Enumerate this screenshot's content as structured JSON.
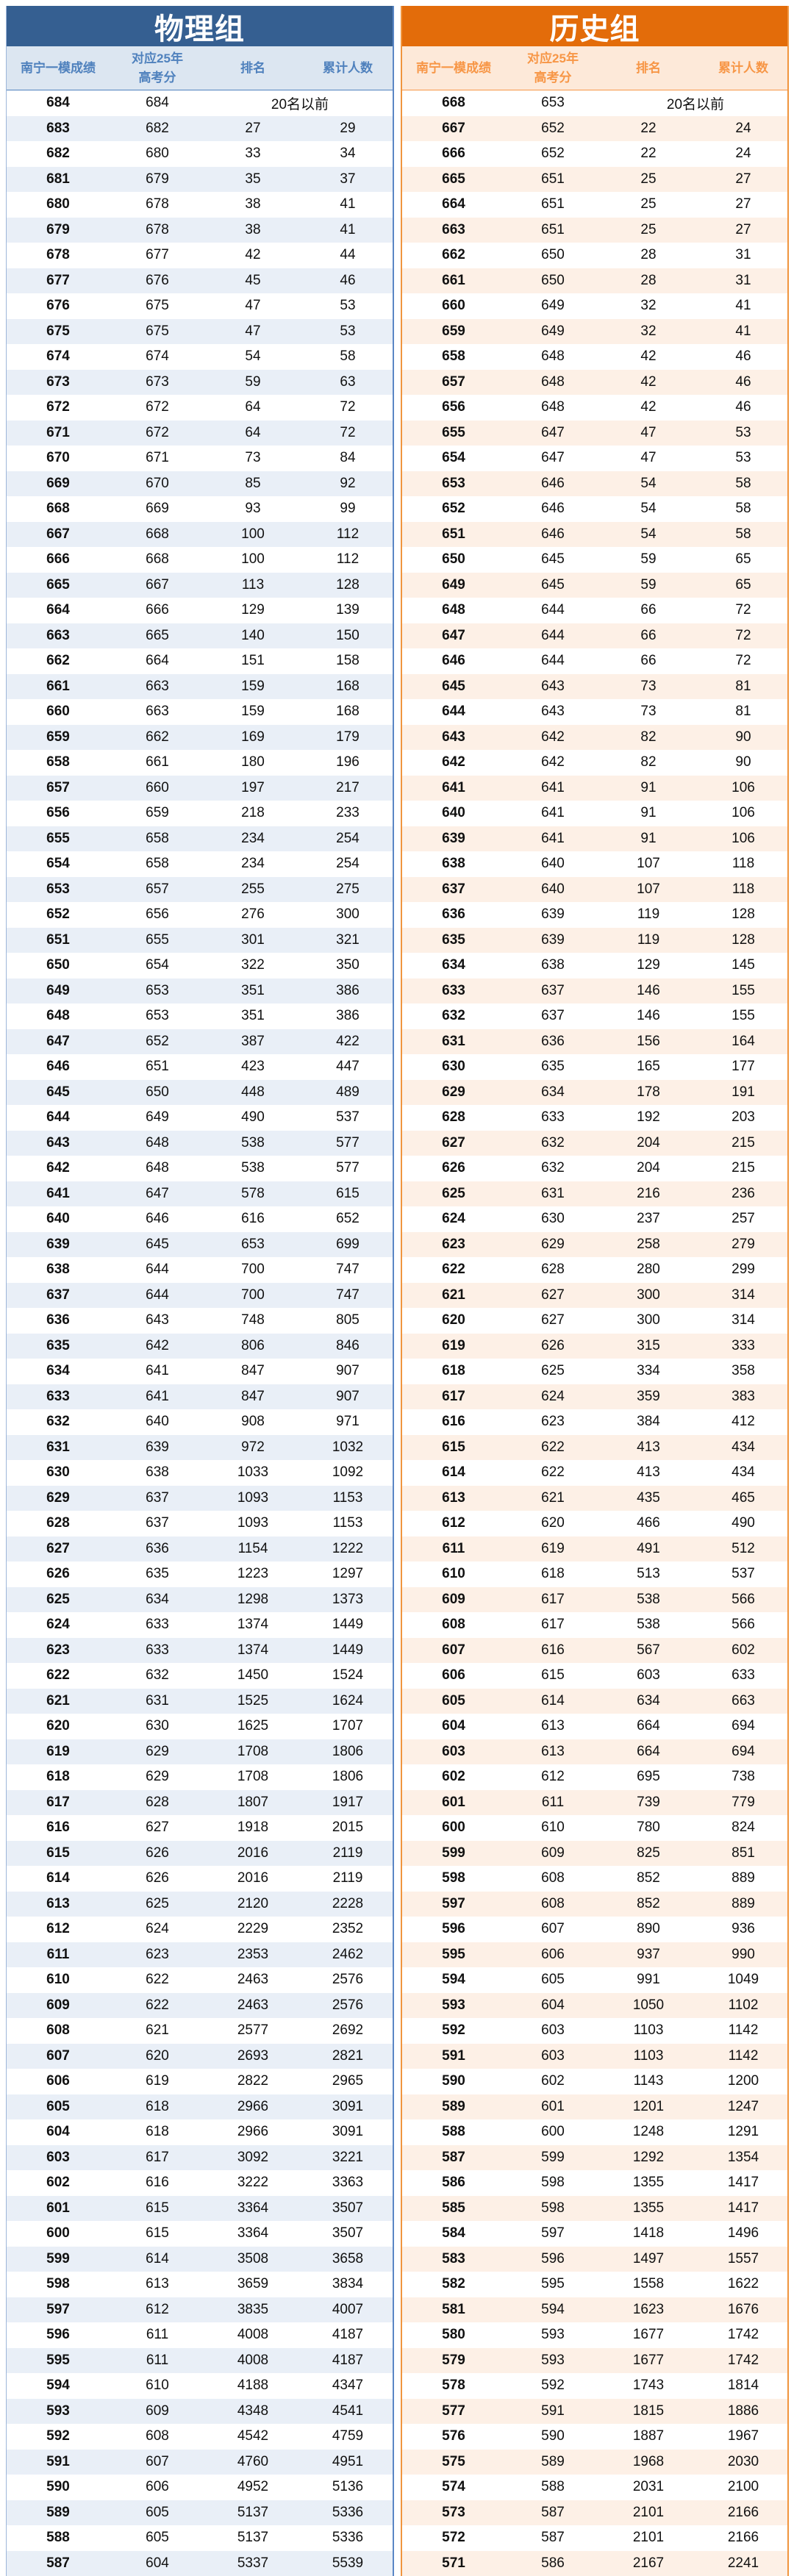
{
  "colors": {
    "physics_accent": "#355F91",
    "history_accent": "#E36C0A"
  },
  "headers": [
    "南宁一模成绩",
    "对应25年\n高考分",
    "排名",
    "累计人数"
  ],
  "physics": {
    "title": "物理组",
    "rows": [
      [
        684,
        684,
        "20名以前"
      ],
      [
        683,
        682,
        27,
        29
      ],
      [
        682,
        680,
        33,
        34
      ],
      [
        681,
        679,
        35,
        37
      ],
      [
        680,
        678,
        38,
        41
      ],
      [
        679,
        678,
        38,
        41
      ],
      [
        678,
        677,
        42,
        44
      ],
      [
        677,
        676,
        45,
        46
      ],
      [
        676,
        675,
        47,
        53
      ],
      [
        675,
        675,
        47,
        53
      ],
      [
        674,
        674,
        54,
        58
      ],
      [
        673,
        673,
        59,
        63
      ],
      [
        672,
        672,
        64,
        72
      ],
      [
        671,
        672,
        64,
        72
      ],
      [
        670,
        671,
        73,
        84
      ],
      [
        669,
        670,
        85,
        92
      ],
      [
        668,
        669,
        93,
        99
      ],
      [
        667,
        668,
        100,
        112
      ],
      [
        666,
        668,
        100,
        112
      ],
      [
        665,
        667,
        113,
        128
      ],
      [
        664,
        666,
        129,
        139
      ],
      [
        663,
        665,
        140,
        150
      ],
      [
        662,
        664,
        151,
        158
      ],
      [
        661,
        663,
        159,
        168
      ],
      [
        660,
        663,
        159,
        168
      ],
      [
        659,
        662,
        169,
        179
      ],
      [
        658,
        661,
        180,
        196
      ],
      [
        657,
        660,
        197,
        217
      ],
      [
        656,
        659,
        218,
        233
      ],
      [
        655,
        658,
        234,
        254
      ],
      [
        654,
        658,
        234,
        254
      ],
      [
        653,
        657,
        255,
        275
      ],
      [
        652,
        656,
        276,
        300
      ],
      [
        651,
        655,
        301,
        321
      ],
      [
        650,
        654,
        322,
        350
      ],
      [
        649,
        653,
        351,
        386
      ],
      [
        648,
        653,
        351,
        386
      ],
      [
        647,
        652,
        387,
        422
      ],
      [
        646,
        651,
        423,
        447
      ],
      [
        645,
        650,
        448,
        489
      ],
      [
        644,
        649,
        490,
        537
      ],
      [
        643,
        648,
        538,
        577
      ],
      [
        642,
        648,
        538,
        577
      ],
      [
        641,
        647,
        578,
        615
      ],
      [
        640,
        646,
        616,
        652
      ],
      [
        639,
        645,
        653,
        699
      ],
      [
        638,
        644,
        700,
        747
      ],
      [
        637,
        644,
        700,
        747
      ],
      [
        636,
        643,
        748,
        805
      ],
      [
        635,
        642,
        806,
        846
      ],
      [
        634,
        641,
        847,
        907
      ],
      [
        633,
        641,
        847,
        907
      ],
      [
        632,
        640,
        908,
        971
      ],
      [
        631,
        639,
        972,
        1032
      ],
      [
        630,
        638,
        1033,
        1092
      ],
      [
        629,
        637,
        1093,
        1153
      ],
      [
        628,
        637,
        1093,
        1153
      ],
      [
        627,
        636,
        1154,
        1222
      ],
      [
        626,
        635,
        1223,
        1297
      ],
      [
        625,
        634,
        1298,
        1373
      ],
      [
        624,
        633,
        1374,
        1449
      ],
      [
        623,
        633,
        1374,
        1449
      ],
      [
        622,
        632,
        1450,
        1524
      ],
      [
        621,
        631,
        1525,
        1624
      ],
      [
        620,
        630,
        1625,
        1707
      ],
      [
        619,
        629,
        1708,
        1806
      ],
      [
        618,
        629,
        1708,
        1806
      ],
      [
        617,
        628,
        1807,
        1917
      ],
      [
        616,
        627,
        1918,
        2015
      ],
      [
        615,
        626,
        2016,
        2119
      ],
      [
        614,
        626,
        2016,
        2119
      ],
      [
        613,
        625,
        2120,
        2228
      ],
      [
        612,
        624,
        2229,
        2352
      ],
      [
        611,
        623,
        2353,
        2462
      ],
      [
        610,
        622,
        2463,
        2576
      ],
      [
        609,
        622,
        2463,
        2576
      ],
      [
        608,
        621,
        2577,
        2692
      ],
      [
        607,
        620,
        2693,
        2821
      ],
      [
        606,
        619,
        2822,
        2965
      ],
      [
        605,
        618,
        2966,
        3091
      ],
      [
        604,
        618,
        2966,
        3091
      ],
      [
        603,
        617,
        3092,
        3221
      ],
      [
        602,
        616,
        3222,
        3363
      ],
      [
        601,
        615,
        3364,
        3507
      ],
      [
        600,
        615,
        3364,
        3507
      ],
      [
        599,
        614,
        3508,
        3658
      ],
      [
        598,
        613,
        3659,
        3834
      ],
      [
        597,
        612,
        3835,
        4007
      ],
      [
        596,
        611,
        4008,
        4187
      ],
      [
        595,
        611,
        4008,
        4187
      ],
      [
        594,
        610,
        4188,
        4347
      ],
      [
        593,
        609,
        4348,
        4541
      ],
      [
        592,
        608,
        4542,
        4759
      ],
      [
        591,
        607,
        4760,
        4951
      ],
      [
        590,
        606,
        4952,
        5136
      ],
      [
        589,
        605,
        5137,
        5336
      ],
      [
        588,
        605,
        5137,
        5336
      ],
      [
        587,
        604,
        5337,
        5539
      ]
    ]
  },
  "history": {
    "title": "历史组",
    "rows": [
      [
        668,
        653,
        "20名以前"
      ],
      [
        667,
        652,
        22,
        24
      ],
      [
        666,
        652,
        22,
        24
      ],
      [
        665,
        651,
        25,
        27
      ],
      [
        664,
        651,
        25,
        27
      ],
      [
        663,
        651,
        25,
        27
      ],
      [
        662,
        650,
        28,
        31
      ],
      [
        661,
        650,
        28,
        31
      ],
      [
        660,
        649,
        32,
        41
      ],
      [
        659,
        649,
        32,
        41
      ],
      [
        658,
        648,
        42,
        46
      ],
      [
        657,
        648,
        42,
        46
      ],
      [
        656,
        648,
        42,
        46
      ],
      [
        655,
        647,
        47,
        53
      ],
      [
        654,
        647,
        47,
        53
      ],
      [
        653,
        646,
        54,
        58
      ],
      [
        652,
        646,
        54,
        58
      ],
      [
        651,
        646,
        54,
        58
      ],
      [
        650,
        645,
        59,
        65
      ],
      [
        649,
        645,
        59,
        65
      ],
      [
        648,
        644,
        66,
        72
      ],
      [
        647,
        644,
        66,
        72
      ],
      [
        646,
        644,
        66,
        72
      ],
      [
        645,
        643,
        73,
        81
      ],
      [
        644,
        643,
        73,
        81
      ],
      [
        643,
        642,
        82,
        90
      ],
      [
        642,
        642,
        82,
        90
      ],
      [
        641,
        641,
        91,
        106
      ],
      [
        640,
        641,
        91,
        106
      ],
      [
        639,
        641,
        91,
        106
      ],
      [
        638,
        640,
        107,
        118
      ],
      [
        637,
        640,
        107,
        118
      ],
      [
        636,
        639,
        119,
        128
      ],
      [
        635,
        639,
        119,
        128
      ],
      [
        634,
        638,
        129,
        145
      ],
      [
        633,
        637,
        146,
        155
      ],
      [
        632,
        637,
        146,
        155
      ],
      [
        631,
        636,
        156,
        164
      ],
      [
        630,
        635,
        165,
        177
      ],
      [
        629,
        634,
        178,
        191
      ],
      [
        628,
        633,
        192,
        203
      ],
      [
        627,
        632,
        204,
        215
      ],
      [
        626,
        632,
        204,
        215
      ],
      [
        625,
        631,
        216,
        236
      ],
      [
        624,
        630,
        237,
        257
      ],
      [
        623,
        629,
        258,
        279
      ],
      [
        622,
        628,
        280,
        299
      ],
      [
        621,
        627,
        300,
        314
      ],
      [
        620,
        627,
        300,
        314
      ],
      [
        619,
        626,
        315,
        333
      ],
      [
        618,
        625,
        334,
        358
      ],
      [
        617,
        624,
        359,
        383
      ],
      [
        616,
        623,
        384,
        412
      ],
      [
        615,
        622,
        413,
        434
      ],
      [
        614,
        622,
        413,
        434
      ],
      [
        613,
        621,
        435,
        465
      ],
      [
        612,
        620,
        466,
        490
      ],
      [
        611,
        619,
        491,
        512
      ],
      [
        610,
        618,
        513,
        537
      ],
      [
        609,
        617,
        538,
        566
      ],
      [
        608,
        617,
        538,
        566
      ],
      [
        607,
        616,
        567,
        602
      ],
      [
        606,
        615,
        603,
        633
      ],
      [
        605,
        614,
        634,
        663
      ],
      [
        604,
        613,
        664,
        694
      ],
      [
        603,
        613,
        664,
        694
      ],
      [
        602,
        612,
        695,
        738
      ],
      [
        601,
        611,
        739,
        779
      ],
      [
        600,
        610,
        780,
        824
      ],
      [
        599,
        609,
        825,
        851
      ],
      [
        598,
        608,
        852,
        889
      ],
      [
        597,
        608,
        852,
        889
      ],
      [
        596,
        607,
        890,
        936
      ],
      [
        595,
        606,
        937,
        990
      ],
      [
        594,
        605,
        991,
        1049
      ],
      [
        593,
        604,
        1050,
        1102
      ],
      [
        592,
        603,
        1103,
        1142
      ],
      [
        591,
        603,
        1103,
        1142
      ],
      [
        590,
        602,
        1143,
        1200
      ],
      [
        589,
        601,
        1201,
        1247
      ],
      [
        588,
        600,
        1248,
        1291
      ],
      [
        587,
        599,
        1292,
        1354
      ],
      [
        586,
        598,
        1355,
        1417
      ],
      [
        585,
        598,
        1355,
        1417
      ],
      [
        584,
        597,
        1418,
        1496
      ],
      [
        583,
        596,
        1497,
        1557
      ],
      [
        582,
        595,
        1558,
        1622
      ],
      [
        581,
        594,
        1623,
        1676
      ],
      [
        580,
        593,
        1677,
        1742
      ],
      [
        579,
        593,
        1677,
        1742
      ],
      [
        578,
        592,
        1743,
        1814
      ],
      [
        577,
        591,
        1815,
        1886
      ],
      [
        576,
        590,
        1887,
        1967
      ],
      [
        575,
        589,
        1968,
        2030
      ],
      [
        574,
        588,
        2031,
        2100
      ],
      [
        573,
        587,
        2101,
        2166
      ],
      [
        572,
        587,
        2101,
        2166
      ],
      [
        571,
        586,
        2167,
        2241
      ]
    ]
  }
}
